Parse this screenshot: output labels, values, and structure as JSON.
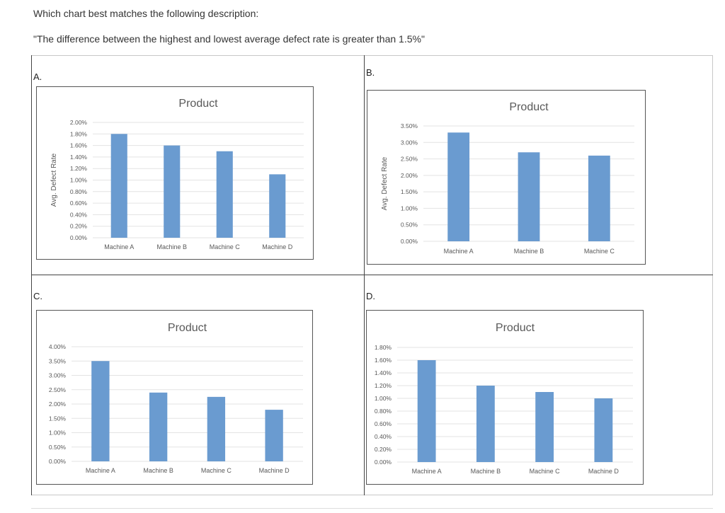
{
  "question": {
    "prompt": "Which chart best matches the following description:",
    "description": "\"The difference between the highest and lowest average defect rate is greater than 1.5%\""
  },
  "colors": {
    "bar": "#6a9bd0",
    "grid": "#e3e3e3",
    "text": "#595959"
  },
  "chart_data": [
    {
      "option": "A.",
      "type": "bar",
      "title": "Product",
      "ylabel": "Avg. Defect Rate",
      "xlabel": "",
      "categories": [
        "Machine A",
        "Machine B",
        "Machine C",
        "Machine D"
      ],
      "values": [
        1.8,
        1.6,
        1.5,
        1.1
      ],
      "ylim": [
        0,
        2.0
      ],
      "yticks": [
        "0.00%",
        "0.20%",
        "0.40%",
        "0.60%",
        "0.80%",
        "1.00%",
        "1.20%",
        "1.40%",
        "1.60%",
        "1.80%",
        "2.00%"
      ],
      "grid": true
    },
    {
      "option": "B.",
      "type": "bar",
      "title": "Product",
      "ylabel": "Avg. Defect Rate",
      "xlabel": "",
      "categories": [
        "Machine A",
        "Machine B",
        "Machine C"
      ],
      "values": [
        3.3,
        2.7,
        2.6
      ],
      "ylim": [
        0,
        3.5
      ],
      "yticks": [
        "0.00%",
        "0.50%",
        "1.00%",
        "1.50%",
        "2.00%",
        "2.50%",
        "3.00%",
        "3.50%"
      ],
      "grid": true
    },
    {
      "option": "C.",
      "type": "bar",
      "title": "Product",
      "ylabel": "",
      "xlabel": "",
      "categories": [
        "Machine A",
        "Machine B",
        "Machine C",
        "Machine D"
      ],
      "values": [
        3.5,
        2.4,
        2.25,
        1.8
      ],
      "ylim": [
        0,
        4.0
      ],
      "yticks": [
        "0.00%",
        "0.50%",
        "1.00%",
        "1.50%",
        "2.00%",
        "2.50%",
        "3.00%",
        "3.50%",
        "4.00%"
      ],
      "grid": true
    },
    {
      "option": "D.",
      "type": "bar",
      "title": "Product",
      "ylabel": "",
      "xlabel": "",
      "categories": [
        "Machine A",
        "Machine B",
        "Machine C",
        "Machine D"
      ],
      "values": [
        1.6,
        1.2,
        1.1,
        1.0
      ],
      "ylim": [
        0,
        1.8
      ],
      "yticks": [
        "0.00%",
        "0.20%",
        "0.40%",
        "0.60%",
        "0.80%",
        "1.00%",
        "1.20%",
        "1.40%",
        "1.60%",
        "1.80%"
      ],
      "grid": true
    }
  ]
}
